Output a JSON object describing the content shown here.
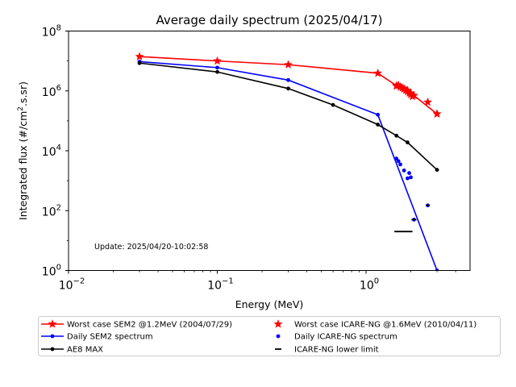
{
  "chart_data": {
    "type": "line",
    "title": "Average daily spectrum (2025/04/17)",
    "xlabel": "Energy (MeV)",
    "ylabel_main": "Integrated flux (#/cm",
    "ylabel_sup": "2",
    "ylabel_tail": ".s.sr)",
    "xscale": "log",
    "yscale": "log",
    "xlim": [
      0.01,
      5
    ],
    "ylim": [
      1,
      100000000
    ],
    "grid": false,
    "legend_position": "below-plot",
    "x_ticks": [
      {
        "value": 0.01,
        "base": "10",
        "exp": "−2"
      },
      {
        "value": 0.1,
        "base": "10",
        "exp": "−1"
      },
      {
        "value": 1,
        "base": "10",
        "exp": "0"
      }
    ],
    "y_ticks": [
      {
        "value": 1,
        "base": "10",
        "exp": "0"
      },
      {
        "value": 100,
        "base": "10",
        "exp": "2"
      },
      {
        "value": 10000,
        "base": "10",
        "exp": "4"
      },
      {
        "value": 1000000,
        "base": "10",
        "exp": "6"
      },
      {
        "value": 100000000,
        "base": "10",
        "exp": "8"
      }
    ],
    "annotation": "Update: 2025/04/20-10:02:58",
    "series": [
      {
        "name": "Worst case SEM2 @1.2MeV (2004/07/29)",
        "style": "line",
        "marker": "star",
        "color": "#ff0000",
        "x": [
          0.03,
          0.1,
          0.3,
          1.2,
          1.6,
          1.7,
          1.8,
          1.9,
          2.0,
          2.1,
          3.0
        ],
        "y": [
          14000000,
          10000000,
          7500000,
          3900000,
          1500000,
          1350000,
          1200000,
          1050000,
          850000,
          700000,
          170000
        ]
      },
      {
        "name": "Daily SEM2 spectrum",
        "style": "line",
        "marker": "dot",
        "color": "#0000ff",
        "x": [
          0.03,
          0.1,
          0.3,
          1.2,
          3.0
        ],
        "y": [
          9500000,
          6000000,
          2300000,
          160000,
          1
        ]
      },
      {
        "name": "AE8 MAX",
        "style": "line",
        "marker": "dot",
        "color": "#000000",
        "x": [
          0.03,
          0.1,
          0.3,
          0.6,
          1.2,
          1.6,
          1.9,
          3.0
        ],
        "y": [
          8500000,
          4300000,
          1200000,
          340000,
          75000,
          32000,
          19000,
          2300
        ]
      },
      {
        "name": "Worst case ICARE-NG @1.6MeV (2010/04/11)",
        "style": "scatter",
        "marker": "star",
        "color": "#ff0000",
        "x": [
          1.6,
          1.65,
          1.7,
          1.75,
          1.8,
          1.85,
          1.9,
          1.95,
          2.0,
          2.05,
          2.6,
          3.0
        ],
        "y": [
          1450000,
          1550000,
          1350000,
          1250000,
          1150000,
          1050000,
          950000,
          850000,
          750000,
          650000,
          420000,
          170000
        ]
      },
      {
        "name": "Daily ICARE-NG spectrum",
        "style": "scatter",
        "marker": "dot",
        "color": "#0000ff",
        "x": [
          1.6,
          1.65,
          1.7,
          1.8,
          1.9,
          1.95,
          2.0,
          2.1,
          2.6
        ],
        "y": [
          5500,
          4500,
          3500,
          2200,
          1200,
          1800,
          1300,
          50,
          150
        ]
      },
      {
        "name": "ICARE-NG lower limit",
        "style": "scatter",
        "marker": "hline",
        "color": "#000000",
        "x": [
          1.8,
          2.1,
          2.6
        ],
        "y": [
          20,
          50,
          150
        ],
        "halfwidth_x": [
          0.25,
          0.08,
          0.08
        ]
      }
    ]
  }
}
